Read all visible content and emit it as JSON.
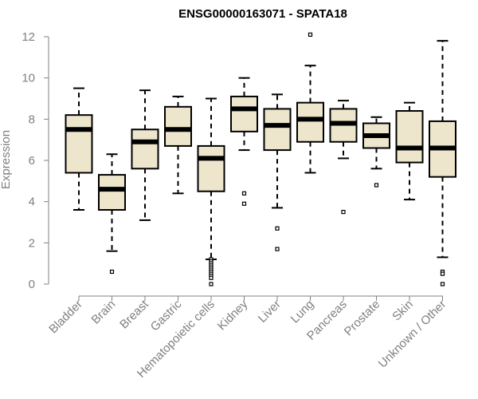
{
  "chart_data": {
    "type": "boxplot",
    "title": "ENSG00000163071 - SPATA18",
    "xlabel": "",
    "ylabel": "Expression",
    "ylim": [
      0,
      12
    ],
    "yticks": [
      0,
      2,
      4,
      6,
      8,
      10,
      12
    ],
    "categories": [
      "Bladder",
      "Brain",
      "Breast",
      "Gastric",
      "Hematopoietic cells",
      "Kidney",
      "Liver",
      "Lung",
      "Pancreas",
      "Prostate",
      "Skin",
      "Unknown / Other"
    ],
    "boxes": [
      {
        "name": "Bladder",
        "whisker_low": 3.6,
        "q1": 5.4,
        "median": 7.5,
        "q3": 8.2,
        "whisker_high": 9.5,
        "outliers": []
      },
      {
        "name": "Brain",
        "whisker_low": 1.6,
        "q1": 3.6,
        "median": 4.6,
        "q3": 5.3,
        "whisker_high": 6.3,
        "outliers": [
          0.6
        ]
      },
      {
        "name": "Breast",
        "whisker_low": 3.1,
        "q1": 5.6,
        "median": 6.9,
        "q3": 7.5,
        "whisker_high": 9.4,
        "outliers": []
      },
      {
        "name": "Gastric",
        "whisker_low": 4.4,
        "q1": 6.7,
        "median": 7.5,
        "q3": 8.6,
        "whisker_high": 9.1,
        "outliers": []
      },
      {
        "name": "Hematopoietic cells",
        "whisker_low": 1.2,
        "q1": 4.5,
        "median": 6.1,
        "q3": 6.7,
        "whisker_high": 9.0,
        "outliers": [
          1.2,
          1.1,
          1.0,
          0.9,
          0.8,
          0.7,
          0.6,
          0.5,
          0.4,
          0.3,
          0.0
        ]
      },
      {
        "name": "Kidney",
        "whisker_low": 6.5,
        "q1": 7.4,
        "median": 8.5,
        "q3": 9.1,
        "whisker_high": 10.0,
        "outliers": [
          4.4,
          3.9
        ]
      },
      {
        "name": "Liver",
        "whisker_low": 3.7,
        "q1": 6.5,
        "median": 7.7,
        "q3": 8.5,
        "whisker_high": 9.2,
        "outliers": [
          2.7,
          1.7
        ]
      },
      {
        "name": "Lung",
        "whisker_low": 5.4,
        "q1": 6.9,
        "median": 8.0,
        "q3": 8.8,
        "whisker_high": 10.6,
        "outliers": [
          12.1
        ]
      },
      {
        "name": "Pancreas",
        "whisker_low": 6.1,
        "q1": 6.9,
        "median": 7.8,
        "q3": 8.5,
        "whisker_high": 8.9,
        "outliers": [
          3.5
        ]
      },
      {
        "name": "Prostate",
        "whisker_low": 5.6,
        "q1": 6.6,
        "median": 7.2,
        "q3": 7.8,
        "whisker_high": 8.1,
        "outliers": [
          4.8
        ]
      },
      {
        "name": "Skin",
        "whisker_low": 4.1,
        "q1": 5.9,
        "median": 6.6,
        "q3": 8.4,
        "whisker_high": 8.8,
        "outliers": []
      },
      {
        "name": "Unknown / Other",
        "whisker_low": 1.3,
        "q1": 5.2,
        "median": 6.6,
        "q3": 7.9,
        "whisker_high": 11.8,
        "outliers": [
          0.6,
          0.5,
          0.0
        ]
      }
    ],
    "colors": {
      "box_fill": "#ede6cc",
      "box_stroke": "#000000",
      "axis": "#808080"
    }
  }
}
